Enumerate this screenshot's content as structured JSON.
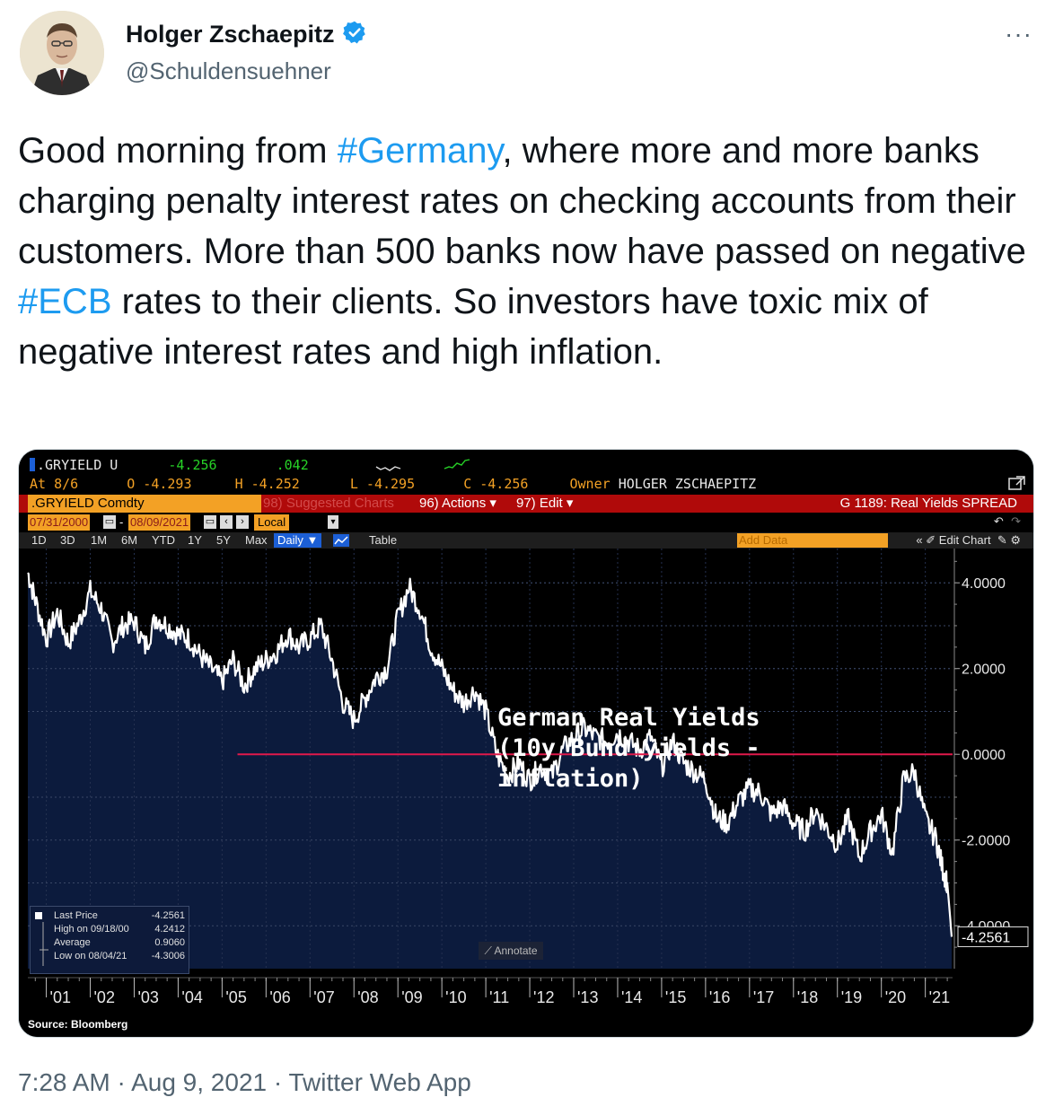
{
  "tweet": {
    "author_name": "Holger Zschaepitz",
    "handle": "@Schuldensuehner",
    "more_label": "···",
    "text_part1": "Good morning from ",
    "hashtag1": "#Germany",
    "text_part2": ", where more and more banks charging penalty interest rates on checking accounts from their customers. More than 500 banks now have passed on negative ",
    "hashtag2": "#ECB",
    "text_part3": " rates to their clients. So investors have toxic mix of negative interest rates and high inflation.",
    "timestamp": "7:28 AM · Aug 9, 2021 · Twitter Web App",
    "verified_icon": "verified-badge-icon",
    "hashtag_color": "#1d9bf0"
  },
  "terminal": {
    "ticker": ".GRYIELD U",
    "last": "-4.256",
    "change": ".042",
    "at_label": "At 8/6",
    "open": "O -4.293",
    "high": "H -4.252",
    "low": "L -4.295",
    "close": "C -4.256",
    "owner_label": "Owner",
    "owner": "HOLGER ZSCHAEPITZ",
    "security": ".GRYIELD Comdty",
    "suggested": "98) Suggested Charts",
    "actions": "96) Actions ▾",
    "edit": "97) Edit ▾",
    "chart_name": "G 1189: Real Yields SPREAD",
    "start_date": "07/31/2000",
    "end_date": "08/09/2021",
    "currency": "Local CCY",
    "periods": [
      "1D",
      "3D",
      "1M",
      "6M",
      "YTD",
      "1Y",
      "5Y",
      "Max"
    ],
    "frequency": "Daily ▼",
    "table_label": "Table",
    "add_data": "Add Data",
    "edit_chart": "« ✐ Edit Chart",
    "annotate": "⟋ Annotate",
    "source": "Source: Bloomberg",
    "brand_color": "#f3a125"
  },
  "chart_data": {
    "type": "line",
    "title": "German Real Yields\n(10y Bund yields -\ninflation)",
    "y_ticks": [
      "4.0000",
      "2.0000",
      "0.0000",
      "-2.0000",
      "-4.0000"
    ],
    "ylim": [
      -5.0,
      4.8
    ],
    "x_ticks": [
      "'01",
      "'02",
      "'03",
      "'04",
      "'05",
      "'06",
      "'07",
      "'08",
      "'09",
      "'10",
      "'11",
      "'12",
      "'13",
      "'14",
      "'15",
      "'16",
      "'17",
      "'18",
      "'19",
      "'20",
      "'21"
    ],
    "last_value_label": "-4.2561",
    "reference_line": 0.0,
    "x": [
      2000.58,
      2000.75,
      2001.0,
      2001.25,
      2001.5,
      2001.75,
      2002.0,
      2002.25,
      2002.5,
      2002.75,
      2003.0,
      2003.25,
      2003.5,
      2003.75,
      2004.0,
      2004.25,
      2004.5,
      2004.75,
      2005.0,
      2005.25,
      2005.5,
      2005.75,
      2006.0,
      2006.25,
      2006.5,
      2006.75,
      2007.0,
      2007.25,
      2007.5,
      2007.75,
      2008.0,
      2008.25,
      2008.5,
      2008.75,
      2009.0,
      2009.25,
      2009.5,
      2009.75,
      2010.0,
      2010.25,
      2010.5,
      2010.75,
      2011.0,
      2011.25,
      2011.5,
      2011.75,
      2012.0,
      2012.25,
      2012.5,
      2012.75,
      2013.0,
      2013.25,
      2013.5,
      2013.75,
      2014.0,
      2014.25,
      2014.5,
      2014.75,
      2015.0,
      2015.25,
      2015.5,
      2015.75,
      2016.0,
      2016.25,
      2016.5,
      2016.75,
      2017.0,
      2017.25,
      2017.5,
      2017.75,
      2018.0,
      2018.25,
      2018.5,
      2018.75,
      2019.0,
      2019.25,
      2019.5,
      2019.75,
      2020.0,
      2020.25,
      2020.5,
      2020.75,
      2021.0,
      2021.25,
      2021.4,
      2021.5,
      2021.6
    ],
    "values": [
      4.24,
      3.6,
      2.7,
      3.3,
      2.6,
      3.1,
      3.8,
      3.4,
      2.6,
      3.0,
      3.1,
      2.5,
      3.2,
      3.0,
      2.8,
      2.7,
      2.3,
      2.0,
      1.7,
      2.2,
      1.6,
      2.0,
      2.2,
      2.4,
      2.8,
      2.5,
      2.7,
      3.0,
      2.2,
      1.2,
      0.8,
      1.3,
      1.8,
      2.0,
      3.2,
      3.9,
      3.4,
      2.5,
      2.0,
      1.5,
      1.2,
      1.5,
      1.0,
      0.0,
      -0.5,
      -0.2,
      -0.6,
      -0.3,
      -0.5,
      0.1,
      0.4,
      0.6,
      0.4,
      0.3,
      0.5,
      0.3,
      0.1,
      0.4,
      -0.3,
      0.3,
      -0.2,
      -0.4,
      -0.6,
      -1.5,
      -1.6,
      -1.1,
      -0.8,
      -0.9,
      -1.4,
      -1.2,
      -1.6,
      -1.8,
      -1.3,
      -1.7,
      -2.1,
      -1.5,
      -2.4,
      -1.8,
      -1.4,
      -2.3,
      -0.6,
      -0.4,
      -1.5,
      -2.0,
      -2.7,
      -3.0,
      -4.256
    ],
    "series": [
      {
        "name": ".GRYIELD Comdty",
        "color": "#ffffff"
      }
    ],
    "legend": [
      {
        "label": "Last Price",
        "value": "-4.2561"
      },
      {
        "label": "High on 09/18/00",
        "value": "4.2412"
      },
      {
        "label": "Average",
        "value": "0.9060"
      },
      {
        "label": "Low on 08/04/21",
        "value": "-4.3006"
      }
    ],
    "grid": true,
    "legend_position": "bottom-left"
  }
}
